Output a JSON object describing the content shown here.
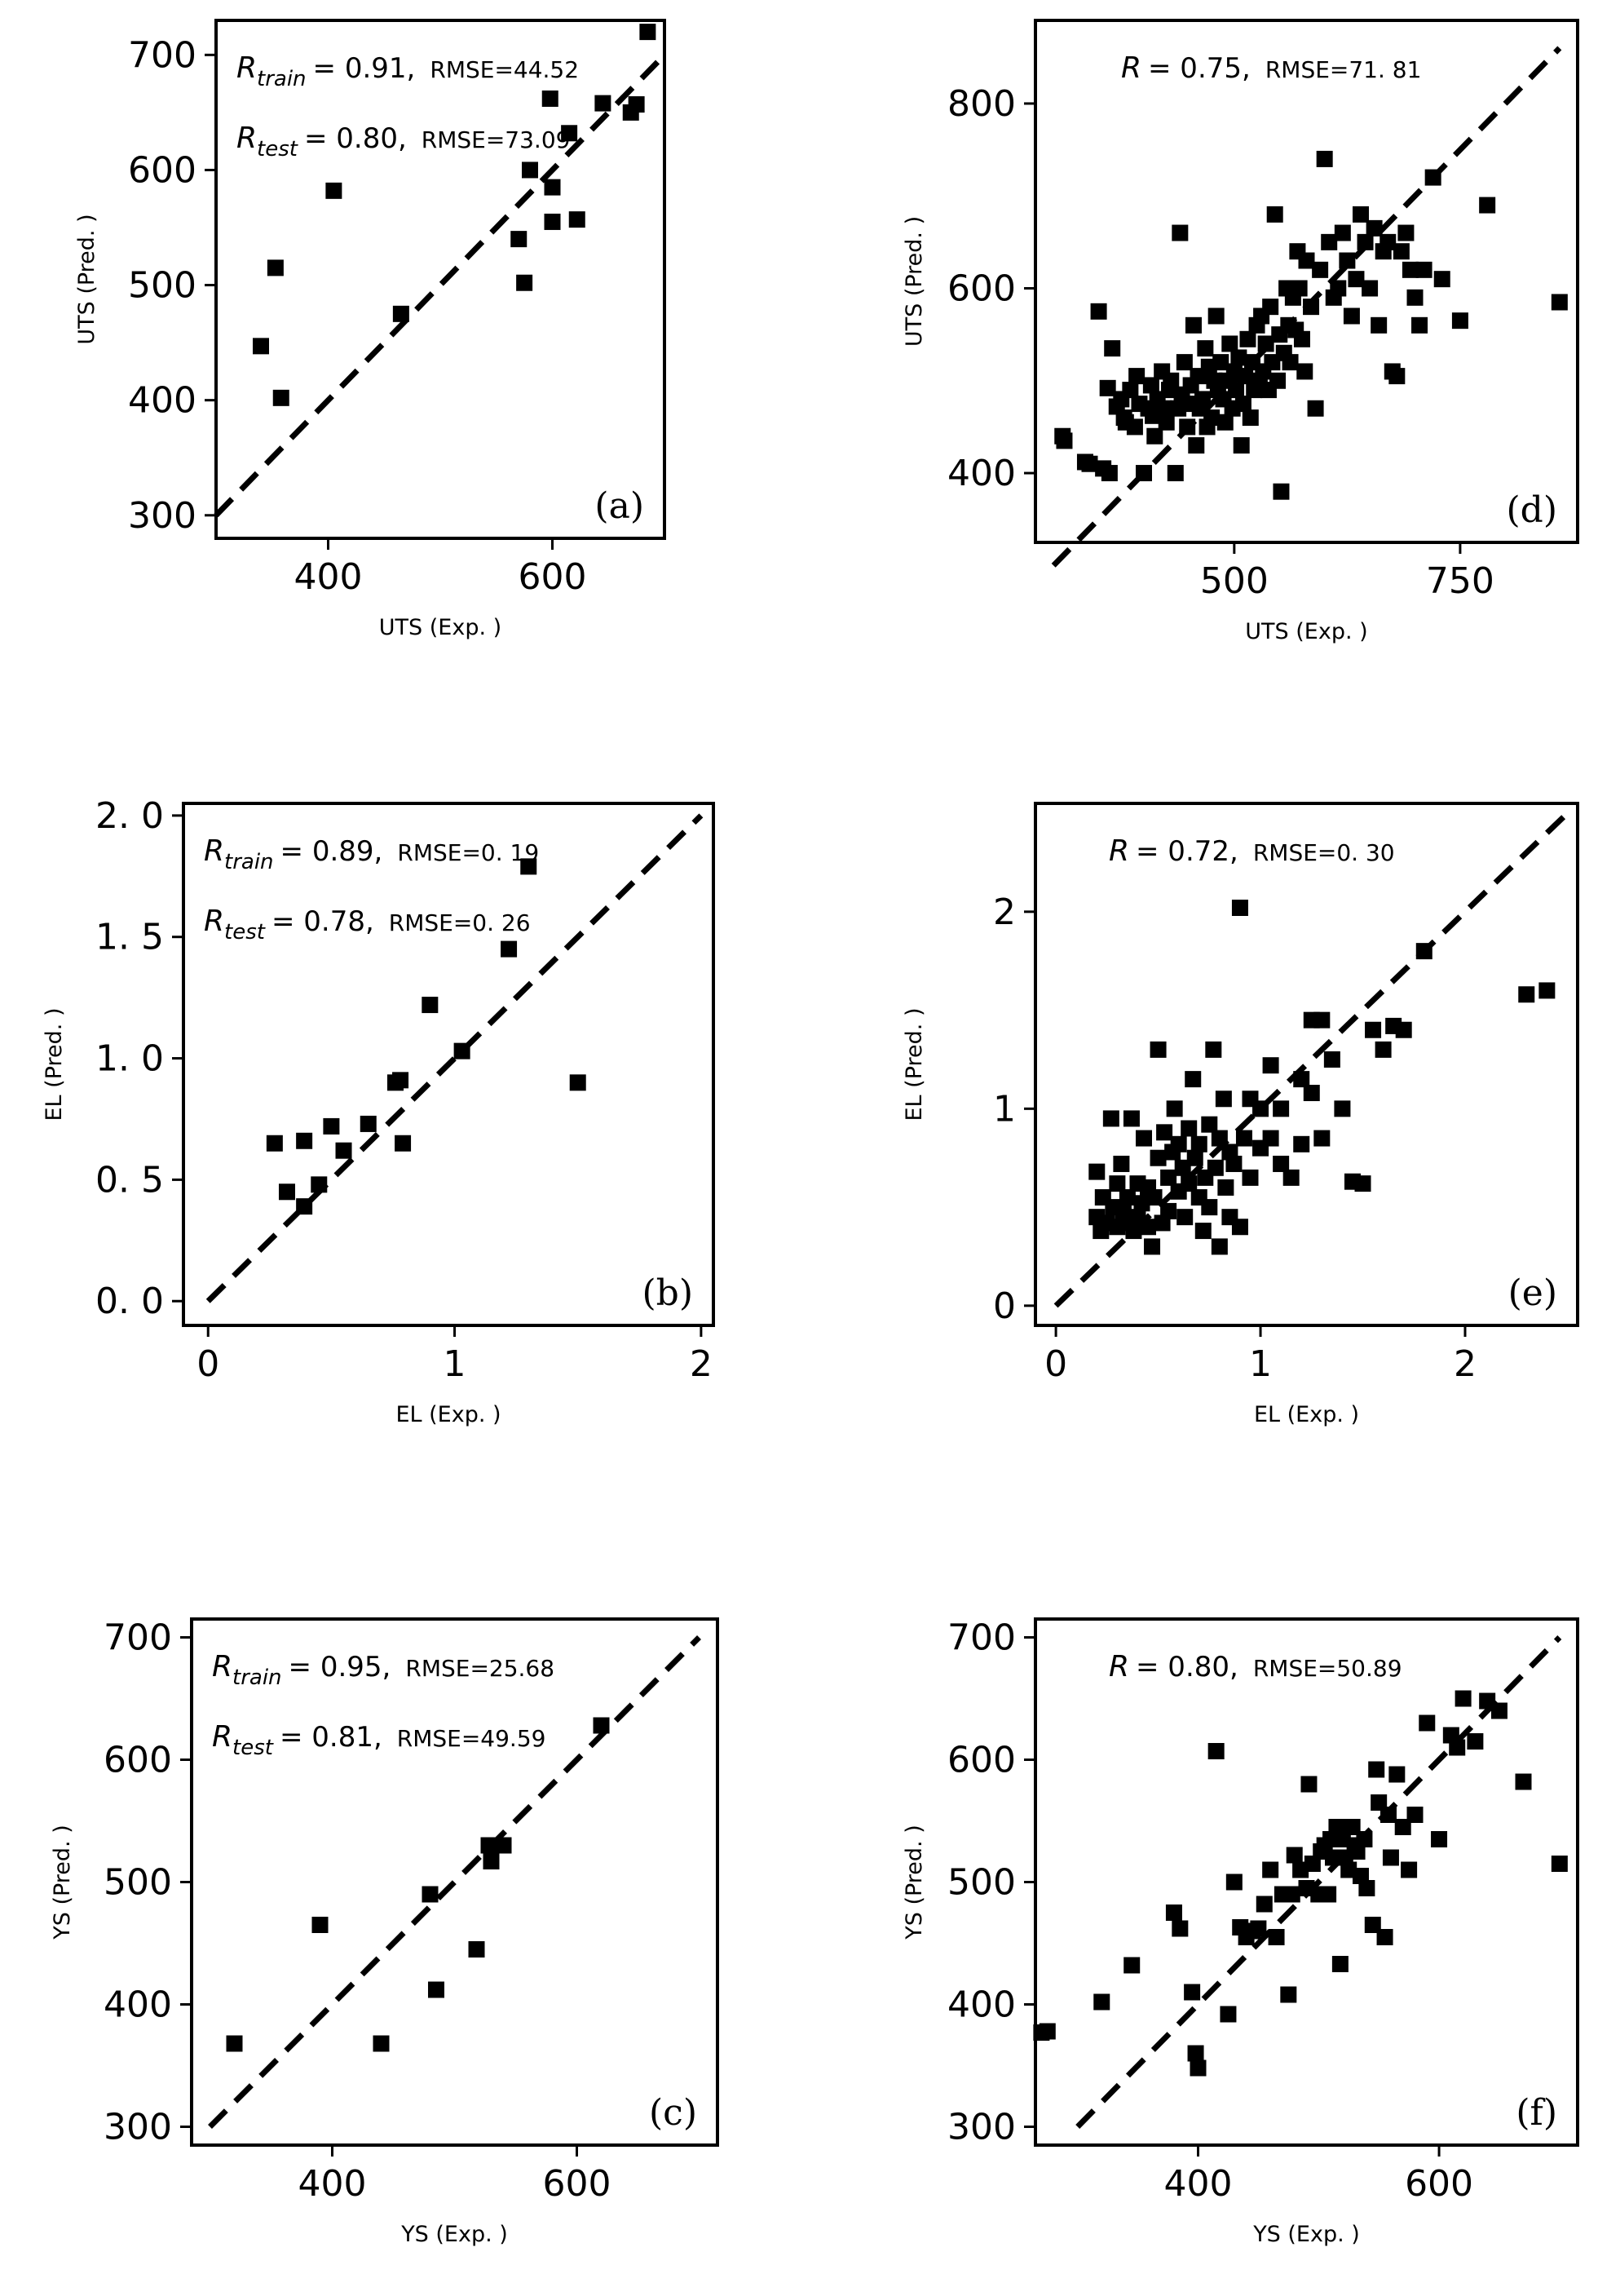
{
  "chart_data": [
    {
      "type": "scatter",
      "panel_label": "(a)",
      "xlabel": "UTS (Exp. )",
      "ylabel": "UTS (Pred. )",
      "xlim": [
        300,
        700
      ],
      "ylim": [
        280,
        730
      ],
      "xticks": [
        400,
        600
      ],
      "yticks": [
        300,
        400,
        500,
        600,
        700
      ],
      "reference_line": {
        "x": [
          300,
          700
        ],
        "y": [
          300,
          700
        ]
      },
      "annotations": [
        {
          "r_symbol": "R",
          "r_sub": "train",
          "r_eq": "= 0.91,",
          "rmse": "RMSE=44.52"
        },
        {
          "r_symbol": "R",
          "r_sub": "test",
          "r_eq": "= 0.80,",
          "rmse": "RMSE=73.09"
        }
      ],
      "points": {
        "x": [
          340,
          353,
          358,
          405,
          465,
          570,
          575,
          580,
          598,
          600,
          600,
          615,
          622,
          645,
          670,
          675,
          685
        ],
        "y": [
          447,
          515,
          402,
          582,
          475,
          540,
          502,
          600,
          662,
          585,
          555,
          632,
          557,
          658,
          650,
          657,
          720
        ]
      }
    },
    {
      "type": "scatter",
      "panel_label": "(b)",
      "xlabel": "EL (Exp. )",
      "ylabel": "EL (Pred. )",
      "xlim": [
        -0.1,
        2.05
      ],
      "ylim": [
        -0.1,
        2.05
      ],
      "xticks": [
        0,
        1,
        2
      ],
      "yticks": [
        0.0,
        0.5,
        1.0,
        1.5,
        2.0
      ],
      "ytick_labels": [
        "0. 0",
        "0. 5",
        "1. 0",
        "1. 5",
        "2. 0"
      ],
      "reference_line": {
        "x": [
          0,
          2
        ],
        "y": [
          0,
          2
        ]
      },
      "annotations": [
        {
          "r_symbol": "R",
          "r_sub": "train",
          "r_eq": "= 0.89,",
          "rmse": "RMSE=0. 19"
        },
        {
          "r_symbol": "R",
          "r_sub": "test",
          "r_eq": "= 0.78,",
          "rmse": "RMSE=0. 26"
        }
      ],
      "points": {
        "x": [
          0.27,
          0.32,
          0.39,
          0.39,
          0.45,
          0.5,
          0.55,
          0.65,
          0.76,
          0.78,
          0.79,
          0.9,
          1.03,
          1.22,
          1.3,
          1.5
        ],
        "y": [
          0.65,
          0.45,
          0.39,
          0.66,
          0.48,
          0.72,
          0.62,
          0.73,
          0.9,
          0.91,
          0.65,
          1.22,
          1.03,
          1.45,
          1.79,
          0.9
        ]
      }
    },
    {
      "type": "scatter",
      "panel_label": "(c)",
      "xlabel": "YS (Exp. )",
      "ylabel": "YS (Pred. )",
      "xlim": [
        285,
        715
      ],
      "ylim": [
        285,
        715
      ],
      "xticks": [
        400,
        600
      ],
      "yticks": [
        300,
        400,
        500,
        600,
        700
      ],
      "reference_line": {
        "x": [
          300,
          700
        ],
        "y": [
          300,
          700
        ]
      },
      "annotations": [
        {
          "r_symbol": "R",
          "r_sub": "train",
          "r_eq": "= 0.95,",
          "rmse": "RMSE=25.68"
        },
        {
          "r_symbol": "R",
          "r_sub": "test",
          "r_eq": "= 0.81,",
          "rmse": "RMSE=49.59"
        }
      ],
      "points": {
        "x": [
          320,
          390,
          440,
          480,
          485,
          518,
          528,
          530,
          540,
          620
        ],
        "y": [
          368,
          465,
          368,
          490,
          412,
          445,
          530,
          517,
          530,
          628
        ]
      }
    },
    {
      "type": "scatter",
      "panel_label": "(d)",
      "xlabel": "UTS (Exp. )",
      "ylabel": "UTS (Pred. )",
      "xlim": [
        280,
        880
      ],
      "ylim": [
        325,
        890
      ],
      "xticks": [
        500,
        750
      ],
      "yticks": [
        400,
        600,
        800
      ],
      "reference_line": {
        "x": [
          300,
          860
        ],
        "y": [
          300,
          860
        ]
      },
      "annotations": [
        {
          "r_symbol": "R",
          "r_sub": "",
          "r_eq": "= 0.75,",
          "rmse": "RMSE=71. 81"
        }
      ],
      "points": {
        "x": [
          310,
          312,
          335,
          340,
          350,
          355,
          360,
          362,
          365,
          370,
          375,
          378,
          380,
          385,
          390,
          392,
          395,
          400,
          405,
          408,
          410,
          412,
          415,
          420,
          422,
          425,
          428,
          430,
          435,
          438,
          440,
          442,
          445,
          448,
          450,
          452,
          455,
          458,
          460,
          462,
          465,
          468,
          470,
          472,
          475,
          478,
          480,
          482,
          485,
          488,
          490,
          492,
          495,
          498,
          500,
          502,
          505,
          508,
          510,
          512,
          515,
          518,
          520,
          522,
          525,
          528,
          530,
          532,
          535,
          538,
          540,
          542,
          545,
          548,
          550,
          552,
          555,
          558,
          560,
          562,
          565,
          568,
          570,
          572,
          575,
          578,
          580,
          585,
          590,
          595,
          600,
          605,
          610,
          615,
          620,
          625,
          630,
          635,
          640,
          645,
          650,
          655,
          660,
          665,
          670,
          675,
          680,
          685,
          690,
          695,
          700,
          705,
          710,
          720,
          730,
          750,
          780,
          860
        ],
        "y": [
          440,
          435,
          412,
          410,
          575,
          405,
          492,
          400,
          535,
          472,
          480,
          460,
          455,
          490,
          450,
          505,
          475,
          400,
          470,
          495,
          462,
          440,
          480,
          510,
          470,
          455,
          490,
          500,
          400,
          470,
          660,
          485,
          520,
          450,
          475,
          495,
          560,
          430,
          505,
          470,
          480,
          535,
          450,
          515,
          460,
          500,
          570,
          490,
          520,
          480,
          455,
          500,
          540,
          470,
          510,
          490,
          525,
          430,
          475,
          505,
          545,
          460,
          520,
          490,
          560,
          500,
          570,
          510,
          540,
          490,
          580,
          520,
          680,
          500,
          550,
          380,
          530,
          600,
          560,
          520,
          590,
          555,
          640,
          600,
          545,
          510,
          630,
          580,
          470,
          620,
          740,
          650,
          590,
          600,
          660,
          630,
          570,
          610,
          680,
          650,
          600,
          665,
          560,
          640,
          650,
          510,
          505,
          640,
          660,
          620,
          590,
          560,
          620,
          720,
          610,
          565,
          690,
          585
        ]
      }
    },
    {
      "type": "scatter",
      "panel_label": "(e)",
      "xlabel": "EL (Exp. )",
      "ylabel": "EL (Pred. )",
      "xlim": [
        -0.1,
        2.55
      ],
      "ylim": [
        -0.1,
        2.55
      ],
      "xticks": [
        0,
        1,
        2
      ],
      "yticks": [
        0,
        1,
        2
      ],
      "reference_line": {
        "x": [
          0,
          2.5
        ],
        "y": [
          0,
          2.5
        ]
      },
      "annotations": [
        {
          "r_symbol": "R",
          "r_sub": "",
          "r_eq": "= 0.72,",
          "rmse": "RMSE=0. 30"
        }
      ],
      "points": {
        "x": [
          0.2,
          0.2,
          0.22,
          0.23,
          0.25,
          0.27,
          0.28,
          0.3,
          0.3,
          0.32,
          0.33,
          0.35,
          0.35,
          0.37,
          0.38,
          0.4,
          0.4,
          0.42,
          0.43,
          0.45,
          0.45,
          0.47,
          0.48,
          0.5,
          0.5,
          0.52,
          0.53,
          0.55,
          0.55,
          0.57,
          0.58,
          0.6,
          0.6,
          0.62,
          0.63,
          0.65,
          0.65,
          0.67,
          0.68,
          0.7,
          0.7,
          0.72,
          0.73,
          0.75,
          0.75,
          0.77,
          0.78,
          0.8,
          0.8,
          0.82,
          0.83,
          0.85,
          0.85,
          0.87,
          0.9,
          0.9,
          0.92,
          0.95,
          0.95,
          1.0,
          1.0,
          1.05,
          1.05,
          1.1,
          1.1,
          1.15,
          1.2,
          1.2,
          1.25,
          1.25,
          1.3,
          1.3,
          1.35,
          1.4,
          1.45,
          1.5,
          1.55,
          1.6,
          1.65,
          1.7,
          1.8,
          2.3,
          2.4
        ],
        "y": [
          0.45,
          0.68,
          0.38,
          0.55,
          0.42,
          0.95,
          0.5,
          0.62,
          0.4,
          0.72,
          0.48,
          0.55,
          0.42,
          0.95,
          0.38,
          0.62,
          0.45,
          0.52,
          0.85,
          0.4,
          0.6,
          0.3,
          0.55,
          1.3,
          0.75,
          0.42,
          0.88,
          0.65,
          0.48,
          0.78,
          1.0,
          0.58,
          0.82,
          0.7,
          0.45,
          0.9,
          0.62,
          1.15,
          0.75,
          0.55,
          0.82,
          0.38,
          0.65,
          0.92,
          0.5,
          1.3,
          0.7,
          0.85,
          0.3,
          1.05,
          0.6,
          0.78,
          0.45,
          0.72,
          2.02,
          0.4,
          0.85,
          1.05,
          0.65,
          1.0,
          0.8,
          0.85,
          1.22,
          0.72,
          1.0,
          0.65,
          1.15,
          0.82,
          1.08,
          1.45,
          0.85,
          1.45,
          1.25,
          1.0,
          0.63,
          0.62,
          1.4,
          1.3,
          1.42,
          1.4,
          1.8,
          1.58,
          1.6
        ]
      }
    },
    {
      "type": "scatter",
      "panel_label": "(f)",
      "xlabel": "YS (Exp. )",
      "ylabel": "YS (Pred. )",
      "xlim": [
        265,
        715
      ],
      "ylim": [
        285,
        715
      ],
      "xticks": [
        400,
        600
      ],
      "yticks": [
        300,
        400,
        500,
        600,
        700
      ],
      "reference_line": {
        "x": [
          300,
          700
        ],
        "y": [
          300,
          700
        ]
      },
      "annotations": [
        {
          "r_symbol": "R",
          "r_sub": "",
          "r_eq": "= 0.80,",
          "rmse": "RMSE=50.89"
        }
      ],
      "points": {
        "x": [
          270,
          275,
          320,
          345,
          380,
          385,
          395,
          398,
          400,
          415,
          425,
          430,
          435,
          440,
          445,
          450,
          455,
          460,
          465,
          470,
          475,
          478,
          480,
          485,
          490,
          492,
          495,
          500,
          502,
          505,
          508,
          510,
          512,
          515,
          518,
          520,
          522,
          525,
          528,
          530,
          532,
          535,
          538,
          540,
          545,
          548,
          550,
          555,
          558,
          560,
          565,
          570,
          575,
          580,
          590,
          600,
          610,
          615,
          620,
          630,
          640,
          650,
          670,
          700
        ],
        "y": [
          377,
          378,
          402,
          432,
          475,
          462,
          410,
          360,
          348,
          607,
          392,
          500,
          463,
          455,
          460,
          462,
          482,
          510,
          455,
          490,
          408,
          490,
          522,
          510,
          495,
          580,
          515,
          490,
          525,
          530,
          490,
          535,
          520,
          545,
          433,
          535,
          520,
          510,
          545,
          530,
          525,
          505,
          535,
          495,
          465,
          592,
          565,
          455,
          555,
          520,
          588,
          545,
          510,
          555,
          630,
          535,
          620,
          610,
          650,
          615,
          648,
          640,
          582,
          515
        ]
      }
    }
  ]
}
